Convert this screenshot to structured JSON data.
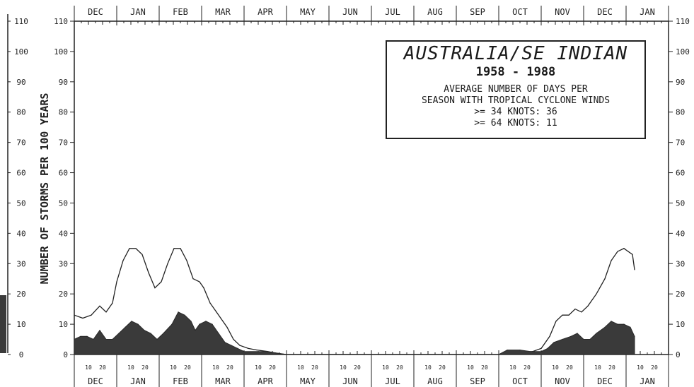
{
  "chart_data": {
    "type": "area",
    "title": "AUSTRALIA/SE INDIAN",
    "subtitle": "1958 - 1988",
    "annotation_lines": [
      "AVERAGE NUMBER OF DAYS PER",
      "SEASON WITH TROPICAL CYCLONE WINDS",
      ">= 34 KNOTS:  36",
      ">= 64 KNOTS:  11"
    ],
    "ylabel": "NUMBER OF STORMS PER 100 YEARS",
    "ylim": [
      0,
      110
    ],
    "yticks": [
      0,
      10,
      20,
      30,
      40,
      50,
      60,
      70,
      80,
      90,
      100,
      110
    ],
    "months": [
      "DEC",
      "JAN",
      "FEB",
      "MAR",
      "APR",
      "MAY",
      "JUN",
      "JUL",
      "AUG",
      "SEP",
      "OCT",
      "NOV",
      "DEC",
      "JAN"
    ],
    "day_tick_labels": [
      "10",
      "20"
    ],
    "xlabel": "",
    "grid": false,
    "x_unit": "months since start of December",
    "series": [
      {
        "fill": "none",
        "color": "#222222",
        "points": [
          [
            0.0,
            13
          ],
          [
            0.2,
            12
          ],
          [
            0.4,
            13
          ],
          [
            0.6,
            16
          ],
          [
            0.75,
            14
          ],
          [
            0.9,
            17
          ],
          [
            1.0,
            24
          ],
          [
            1.15,
            31
          ],
          [
            1.3,
            35
          ],
          [
            1.45,
            35
          ],
          [
            1.6,
            33
          ],
          [
            1.75,
            27
          ],
          [
            1.9,
            22
          ],
          [
            2.05,
            24
          ],
          [
            2.2,
            30
          ],
          [
            2.35,
            35
          ],
          [
            2.5,
            35
          ],
          [
            2.65,
            31
          ],
          [
            2.8,
            25
          ],
          [
            2.95,
            24
          ],
          [
            3.05,
            22
          ],
          [
            3.2,
            17
          ],
          [
            3.35,
            14
          ],
          [
            3.45,
            12
          ],
          [
            3.6,
            9
          ],
          [
            3.75,
            5
          ],
          [
            3.9,
            3
          ],
          [
            4.1,
            2
          ],
          [
            4.3,
            1.5
          ],
          [
            4.55,
            1
          ],
          [
            4.75,
            0.5
          ],
          [
            5.0,
            0
          ],
          [
            9.0,
            0
          ],
          [
            10.0,
            0
          ],
          [
            10.5,
            0.5
          ],
          [
            10.8,
            1
          ],
          [
            11.0,
            2
          ],
          [
            11.2,
            6
          ],
          [
            11.35,
            11
          ],
          [
            11.5,
            13
          ],
          [
            11.65,
            13
          ],
          [
            11.8,
            15
          ],
          [
            11.95,
            14
          ],
          [
            12.1,
            16
          ],
          [
            12.3,
            20
          ],
          [
            12.5,
            25
          ],
          [
            12.65,
            31
          ],
          [
            12.8,
            34
          ],
          [
            12.95,
            35
          ],
          [
            13.05,
            34
          ],
          [
            13.15,
            33
          ],
          [
            13.2,
            28
          ]
        ]
      },
      {
        "fill": "#3a3a3a",
        "color": "#2a2a2a",
        "points": [
          [
            0.0,
            5
          ],
          [
            0.15,
            6
          ],
          [
            0.3,
            6
          ],
          [
            0.45,
            5
          ],
          [
            0.6,
            8
          ],
          [
            0.75,
            5
          ],
          [
            0.9,
            5
          ],
          [
            1.05,
            7
          ],
          [
            1.2,
            9
          ],
          [
            1.35,
            11
          ],
          [
            1.5,
            10
          ],
          [
            1.65,
            8
          ],
          [
            1.8,
            7
          ],
          [
            1.95,
            5
          ],
          [
            2.1,
            7
          ],
          [
            2.3,
            10
          ],
          [
            2.45,
            14
          ],
          [
            2.6,
            13
          ],
          [
            2.75,
            11
          ],
          [
            2.85,
            8
          ],
          [
            2.95,
            10
          ],
          [
            3.1,
            11
          ],
          [
            3.25,
            10
          ],
          [
            3.4,
            7
          ],
          [
            3.55,
            4
          ],
          [
            3.7,
            3
          ],
          [
            3.85,
            2
          ],
          [
            4.0,
            1
          ],
          [
            4.5,
            1
          ],
          [
            4.75,
            0.5
          ],
          [
            5.0,
            0
          ],
          [
            10.0,
            0
          ],
          [
            10.2,
            1.5
          ],
          [
            10.5,
            1.5
          ],
          [
            10.75,
            1
          ],
          [
            11.0,
            1
          ],
          [
            11.15,
            2
          ],
          [
            11.3,
            4
          ],
          [
            11.5,
            5
          ],
          [
            11.7,
            6
          ],
          [
            11.85,
            7
          ],
          [
            12.0,
            5
          ],
          [
            12.15,
            5
          ],
          [
            12.3,
            7
          ],
          [
            12.5,
            9
          ],
          [
            12.65,
            11
          ],
          [
            12.8,
            10
          ],
          [
            12.95,
            10
          ],
          [
            13.1,
            9
          ],
          [
            13.2,
            6
          ]
        ]
      }
    ]
  }
}
